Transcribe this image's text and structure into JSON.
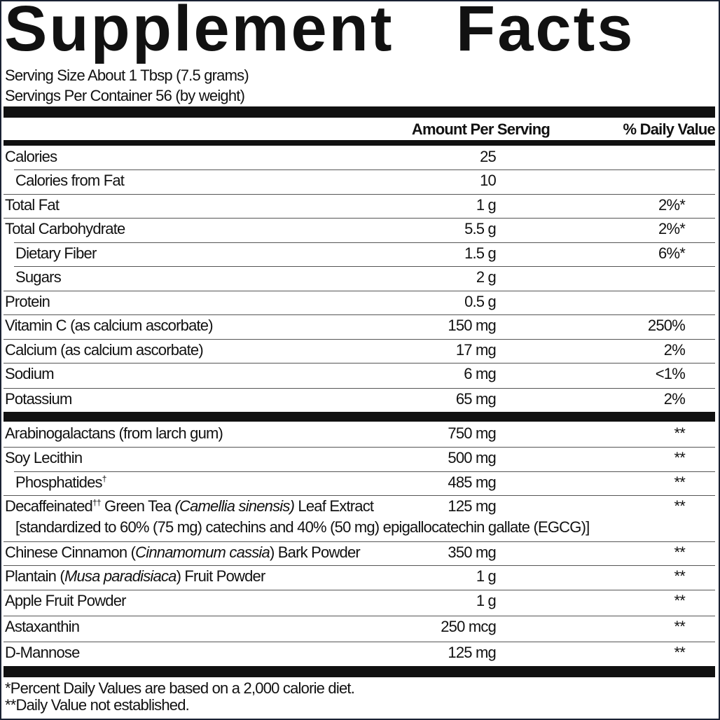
{
  "title": "Supplement Facts",
  "serving_size": "Serving Size About 1 Tbsp (7.5 grams)",
  "servings_per_container": "Servings Per Container 56 (by weight)",
  "header": {
    "amount": "Amount Per Serving",
    "dv": "% Daily Value"
  },
  "section1": [
    {
      "name": [
        {
          "t": "Calories"
        }
      ],
      "amount": "25",
      "dv": ""
    },
    {
      "name": [
        {
          "t": "Calories from Fat"
        }
      ],
      "amount": "10",
      "dv": "",
      "indent": true
    },
    {
      "name": [
        {
          "t": "Total Fat"
        }
      ],
      "amount": "1 g",
      "dv": "2%*"
    },
    {
      "name": [
        {
          "t": "Total Carbohydrate"
        }
      ],
      "amount": "5.5 g",
      "dv": "2%*"
    },
    {
      "name": [
        {
          "t": "Dietary Fiber"
        }
      ],
      "amount": "1.5 g",
      "dv": "6%*",
      "indent": true
    },
    {
      "name": [
        {
          "t": "Sugars"
        }
      ],
      "amount": "2 g",
      "dv": "",
      "indent": true
    },
    {
      "name": [
        {
          "t": "Protein"
        }
      ],
      "amount": "0.5 g",
      "dv": ""
    },
    {
      "name": [
        {
          "t": "Vitamin C (as calcium ascorbate)"
        }
      ],
      "amount": "150 mg",
      "dv": "250%"
    },
    {
      "name": [
        {
          "t": "Calcium (as calcium ascorbate)"
        }
      ],
      "amount": "17 mg",
      "dv": "2%"
    },
    {
      "name": [
        {
          "t": "Sodium"
        }
      ],
      "amount": "6 mg",
      "dv": "<1%"
    },
    {
      "name": [
        {
          "t": "Potassium"
        }
      ],
      "amount": "65 mg",
      "dv": "2%"
    }
  ],
  "section2": [
    {
      "name": [
        {
          "t": "Arabinogalactans (from larch gum)"
        }
      ],
      "amount": "750 mg",
      "dv": "**"
    },
    {
      "name": [
        {
          "t": "Soy Lecithin"
        }
      ],
      "amount": "500 mg",
      "dv": "**"
    },
    {
      "name": [
        {
          "t": "Phosphatides"
        },
        {
          "t": "†",
          "sup": true
        }
      ],
      "amount": "485 mg",
      "dv": "**",
      "indent": true
    },
    {
      "name": [
        {
          "t": "Decaffeinated"
        },
        {
          "t": "††",
          "sup": true
        },
        {
          "t": " Green Tea "
        },
        {
          "t": "(Camellia sinensis)",
          "i": true
        },
        {
          "t": " Leaf Extract"
        }
      ],
      "amount": "125 mg",
      "dv": "**",
      "sub": "[standardized to 60% (75 mg) catechins and 40% (50 mg) epigallocatechin gallate (EGCG)]"
    },
    {
      "name": [
        {
          "t": "Chinese Cinnamon ("
        },
        {
          "t": "Cinnamomum cassia",
          "i": true
        },
        {
          "t": ") Bark Powder"
        }
      ],
      "amount": "350 mg",
      "dv": "**"
    },
    {
      "name": [
        {
          "t": "Plantain ("
        },
        {
          "t": "Musa paradisiaca",
          "i": true
        },
        {
          "t": ") Fruit Powder"
        }
      ],
      "amount": "1 g",
      "dv": "**"
    },
    {
      "name": [
        {
          "t": "Apple Fruit Powder"
        }
      ],
      "amount": "1 g",
      "dv": "**"
    },
    {
      "name": [
        {
          "t": "Astaxanthin"
        }
      ],
      "amount": "250 mcg",
      "dv": "**"
    },
    {
      "name": [
        {
          "t": "D-Mannose"
        }
      ],
      "amount": "125 mg",
      "dv": "**"
    }
  ],
  "footnotes": [
    "*Percent Daily Values are based on a 2,000 calorie diet.",
    "**Daily Value not established."
  ]
}
